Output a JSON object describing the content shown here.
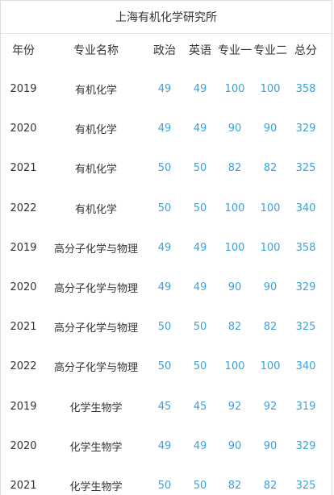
{
  "title": "上海有机化学研究所",
  "headers": {
    "year": "年份",
    "major": "专业名称",
    "politics": "政治",
    "english": "英语",
    "major1": "专业一",
    "major2": "专业二",
    "total": "总分"
  },
  "rows": [
    {
      "year": "2019",
      "major": "有机化学",
      "politics": "49",
      "english": "49",
      "major1": "100",
      "major2": "100",
      "total": "358"
    },
    {
      "year": "2020",
      "major": "有机化学",
      "politics": "49",
      "english": "49",
      "major1": "90",
      "major2": "90",
      "total": "329"
    },
    {
      "year": "2021",
      "major": "有机化学",
      "politics": "50",
      "english": "50",
      "major1": "82",
      "major2": "82",
      "total": "325"
    },
    {
      "year": "2022",
      "major": "有机化学",
      "politics": "50",
      "english": "50",
      "major1": "100",
      "major2": "100",
      "total": "340"
    },
    {
      "year": "2019",
      "major": "高分子化学与物理",
      "politics": "49",
      "english": "49",
      "major1": "100",
      "major2": "100",
      "total": "358"
    },
    {
      "year": "2020",
      "major": "高分子化学与物理",
      "politics": "49",
      "english": "49",
      "major1": "90",
      "major2": "90",
      "total": "329"
    },
    {
      "year": "2021",
      "major": "高分子化学与物理",
      "politics": "50",
      "english": "50",
      "major1": "82",
      "major2": "82",
      "total": "325"
    },
    {
      "year": "2022",
      "major": "高分子化学与物理",
      "politics": "50",
      "english": "50",
      "major1": "100",
      "major2": "100",
      "total": "340"
    },
    {
      "year": "2019",
      "major": "化学生物学",
      "politics": "45",
      "english": "45",
      "major1": "92",
      "major2": "92",
      "total": "319"
    },
    {
      "year": "2020",
      "major": "化学生物学",
      "politics": "49",
      "english": "49",
      "major1": "90",
      "major2": "90",
      "total": "329"
    },
    {
      "year": "2021",
      "major": "化学生物学",
      "politics": "50",
      "english": "50",
      "major1": "82",
      "major2": "82",
      "total": "325"
    }
  ]
}
